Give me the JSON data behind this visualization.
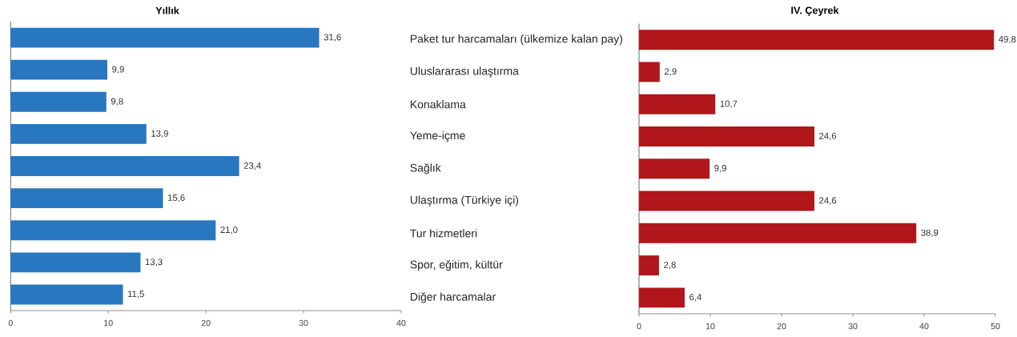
{
  "chart_data": [
    {
      "type": "bar",
      "orientation": "horizontal",
      "title": "Yıllık",
      "categories": [
        null,
        null,
        null,
        null,
        null,
        null,
        null,
        null,
        null
      ],
      "values": [
        31.6,
        9.9,
        9.8,
        13.9,
        23.4,
        15.6,
        21.0,
        13.3,
        11.5
      ],
      "value_labels": [
        "31,6",
        "9,9",
        "9,8",
        "13,9",
        "23,4",
        "15,6",
        "21,0",
        "13,3",
        "11,5"
      ],
      "color": "#2878c0",
      "xlim": [
        0,
        40
      ],
      "xticks": [
        0,
        10,
        20,
        30,
        40
      ]
    },
    {
      "type": "bar",
      "orientation": "horizontal",
      "title": "IV. Çeyrek",
      "categories": [
        "Paket tur harcamaları (ülkemize kalan pay)",
        "Uluslararası ulaştırma",
        "Konaklama",
        "Yeme-içme",
        "Sağlık",
        "Ulaştırma (Türkiye içi)",
        "Tur hizmetleri",
        "Spor, eğitim, kültür",
        "Diğer harcamalar"
      ],
      "values": [
        49.8,
        2.9,
        10.7,
        24.6,
        9.9,
        24.6,
        38.9,
        2.8,
        6.4
      ],
      "value_labels": [
        "49,8",
        "2,9",
        "10,7",
        "24,6",
        "9,9",
        "24,6",
        "38,9",
        "2,8",
        "6,4"
      ],
      "color": "#b0161a",
      "xlim": [
        0,
        50
      ],
      "xticks": [
        0,
        10,
        20,
        30,
        40,
        50
      ]
    }
  ]
}
